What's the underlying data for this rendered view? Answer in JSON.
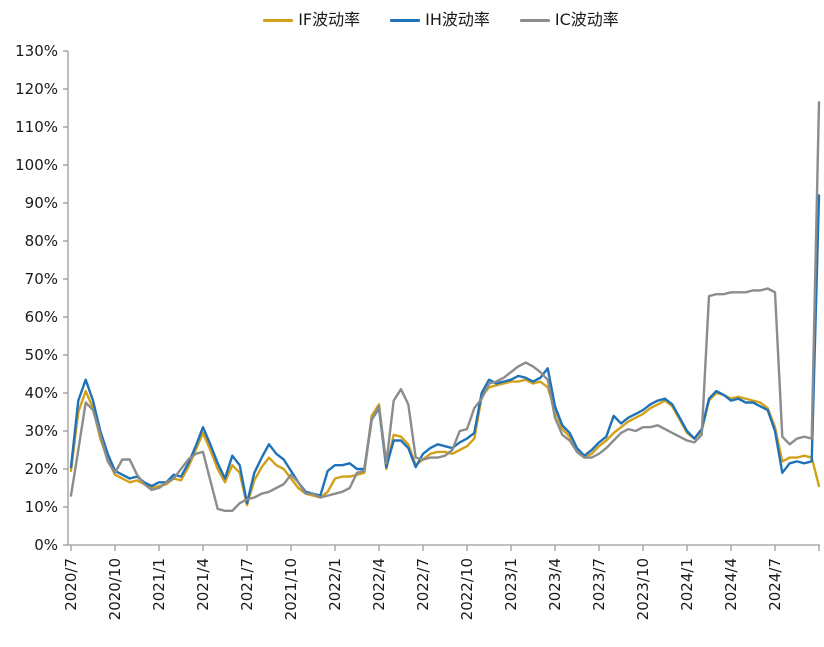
{
  "figure": {
    "background": "#ffffff",
    "axis_color": "#9b9b9b",
    "text_color": "#1a1a1a"
  },
  "chart_data": {
    "type": "line",
    "title": "",
    "xlabel": "",
    "ylabel": "",
    "grid": false,
    "legend_position": "top-center",
    "x_unit": "months since 2020/7 (0.5-month sampling)",
    "x_start": 0,
    "x_step": 0.5,
    "x_tick_positions": [
      0,
      3,
      6,
      9,
      12,
      15,
      18,
      21,
      24,
      27,
      30,
      33,
      36,
      39,
      42,
      45,
      48
    ],
    "x_tick_labels": [
      "2020/7",
      "2020/10",
      "2021/1",
      "2021/4",
      "2021/7",
      "2021/10",
      "2022/1",
      "2022/4",
      "2022/7",
      "2022/10",
      "2023/1",
      "2023/4",
      "2023/7",
      "2023/10",
      "2024/1",
      "2024/4",
      "2024/7"
    ],
    "ylim": [
      0,
      130
    ],
    "y_tick_step": 10,
    "y_tick_labels": [
      "0%",
      "10%",
      "20%",
      "30%",
      "40%",
      "50%",
      "60%",
      "70%",
      "80%",
      "90%",
      "100%",
      "110%",
      "120%",
      "130%"
    ],
    "y_value_format": "percent",
    "series": [
      {
        "name": "IF波动率",
        "color": "#D2A119",
        "values": [
          19.5,
          35,
          40.5,
          36,
          28,
          22.5,
          18.5,
          17.5,
          16.5,
          17,
          16,
          15,
          15.5,
          16,
          17.5,
          17,
          20.5,
          25,
          29.5,
          25,
          20,
          16.5,
          21,
          19,
          10.5,
          17,
          20.5,
          23,
          21,
          20,
          17.5,
          15,
          13.5,
          13,
          12.5,
          14,
          17.5,
          18,
          18,
          18.5,
          19,
          34,
          37,
          20,
          29,
          28.5,
          26.5,
          21,
          22.5,
          24,
          24.5,
          24.5,
          24,
          25,
          26,
          28,
          39,
          41.5,
          42,
          42.5,
          43,
          43,
          43.5,
          42.5,
          43,
          41.5,
          35.5,
          30.5,
          28.5,
          24.5,
          23,
          24,
          26,
          27.5,
          29.5,
          31,
          32.5,
          33.5,
          34.5,
          36,
          37,
          38,
          36.5,
          33,
          29.5,
          28,
          30,
          38,
          40,
          39.5,
          38.5,
          39,
          38.5,
          38,
          37.5,
          36,
          31,
          22,
          23,
          23,
          23.5,
          23,
          15.5
        ]
      },
      {
        "name": "IH波动率",
        "color": "#2072B8",
        "values": [
          20.5,
          38,
          43.5,
          38,
          30,
          24,
          19.5,
          18.5,
          17.5,
          18,
          16.5,
          15.5,
          16.5,
          16.5,
          18.5,
          18,
          21.5,
          26,
          31,
          26.5,
          21.5,
          17.5,
          23.5,
          21,
          11,
          19,
          23,
          26.5,
          24,
          22.5,
          19.5,
          16.5,
          14,
          13.5,
          13,
          19.5,
          21,
          21,
          21.5,
          20,
          20,
          33,
          36,
          20.5,
          27.5,
          27.5,
          25.5,
          20.5,
          24,
          25.5,
          26.5,
          26,
          25.5,
          27,
          28,
          29.5,
          40,
          43.5,
          42.5,
          43,
          43.5,
          44.5,
          44,
          43,
          44,
          46.5,
          36.5,
          31.5,
          29.5,
          25.5,
          23.5,
          25,
          27,
          28.5,
          34,
          32,
          33.5,
          34.5,
          35.5,
          37,
          38,
          38.5,
          37,
          33.5,
          30,
          28,
          30.5,
          38.5,
          40.5,
          39.5,
          38,
          38.5,
          37.5,
          37.5,
          36.5,
          35.5,
          30,
          19,
          21.5,
          22,
          21.5,
          22,
          92
        ]
      },
      {
        "name": "IC波动率",
        "color": "#8C8C8C",
        "values": [
          13,
          25,
          37.5,
          35.5,
          29,
          22,
          19,
          22.5,
          22.5,
          18.5,
          16,
          14.5,
          15,
          16.5,
          17.5,
          20,
          22.5,
          24,
          24.5,
          17,
          9.5,
          9,
          9,
          11,
          12,
          12.5,
          13.5,
          14,
          15,
          16,
          18.5,
          16.5,
          13.5,
          13.5,
          12.5,
          13,
          13.5,
          14,
          15,
          19,
          19.5,
          33,
          36.5,
          21.5,
          38,
          41,
          37,
          23,
          22.5,
          23,
          23,
          23.5,
          25,
          30,
          30.5,
          36,
          38.5,
          42.5,
          43,
          44,
          45.5,
          47,
          48,
          47,
          45.5,
          43.5,
          33.5,
          29,
          27.5,
          24.5,
          23,
          23,
          24,
          25.5,
          27.5,
          29.5,
          30.5,
          30,
          31,
          31,
          31.5,
          30.5,
          29.5,
          28.5,
          27.5,
          27,
          29,
          65.5,
          66,
          66,
          66.5,
          66.5,
          66.5,
          67,
          67,
          67.5,
          66.5,
          28.5,
          26.5,
          28,
          28.5,
          28,
          116.5
        ]
      }
    ]
  }
}
